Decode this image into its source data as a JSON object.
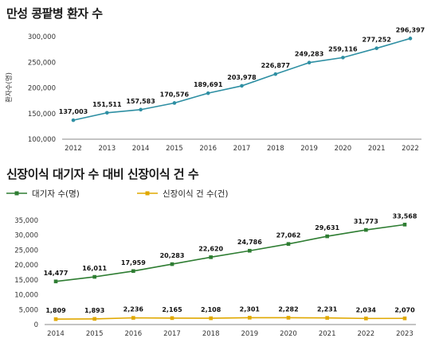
{
  "chart_data": [
    {
      "type": "line",
      "title": "만성 콩팥병 환자 수",
      "ylabel": "환자수(명)",
      "xlabel": "",
      "x": [
        "2012",
        "2013",
        "2014",
        "2015",
        "2016",
        "2017",
        "2018",
        "2019",
        "2020",
        "2021",
        "2022"
      ],
      "series": [
        {
          "values": [
            137003,
            151511,
            157583,
            170576,
            189691,
            203978,
            226877,
            249283,
            259116,
            277252,
            296397
          ],
          "labels": [
            "137,003",
            "151,511",
            "157,583",
            "170,576",
            "189,691",
            "203,978",
            "226,877",
            "249,283",
            "259,116",
            "277,252",
            "296,397"
          ],
          "color": "#2e8fa3"
        }
      ],
      "ylim": [
        100000,
        300000
      ],
      "yticks": [
        100000,
        150000,
        200000,
        250000,
        300000
      ],
      "ytick_labels": [
        "100,000",
        "150,000",
        "200,000",
        "250,000",
        "300,000"
      ],
      "grid": false
    },
    {
      "type": "line",
      "title": "신장이식 대기자 수 대비 신장이식 건 수",
      "xlabel": "",
      "ylabel": "",
      "x": [
        "2014",
        "2015",
        "2016",
        "2017",
        "2018",
        "2019",
        "2020",
        "2021",
        "2022",
        "2023"
      ],
      "series": [
        {
          "name": "대기자 수(명)",
          "values": [
            14477,
            16011,
            17959,
            20283,
            22620,
            24786,
            27062,
            29631,
            31773,
            33568
          ],
          "labels": [
            "14,477",
            "16,011",
            "17,959",
            "20,283",
            "22,620",
            "24,786",
            "27,062",
            "29,631",
            "31,773",
            "33,568"
          ],
          "color": "#2e7d32"
        },
        {
          "name": "신장이식 건 수(건)",
          "values": [
            1809,
            1893,
            2236,
            2165,
            2108,
            2301,
            2282,
            2231,
            2034,
            2070
          ],
          "labels": [
            "1,809",
            "1,893",
            "2,236",
            "2,165",
            "2,108",
            "2,301",
            "2,282",
            "2,231",
            "2,034",
            "2,070"
          ],
          "color": "#e0a800"
        }
      ],
      "ylim": [
        0,
        35000
      ],
      "yticks": [
        0,
        5000,
        10000,
        15000,
        20000,
        25000,
        30000,
        35000
      ],
      "ytick_labels": [
        "0",
        "5,000",
        "10,000",
        "15,000",
        "20,000",
        "25,000",
        "30,000",
        "35,000"
      ],
      "legend": "top-left",
      "grid": false
    }
  ]
}
